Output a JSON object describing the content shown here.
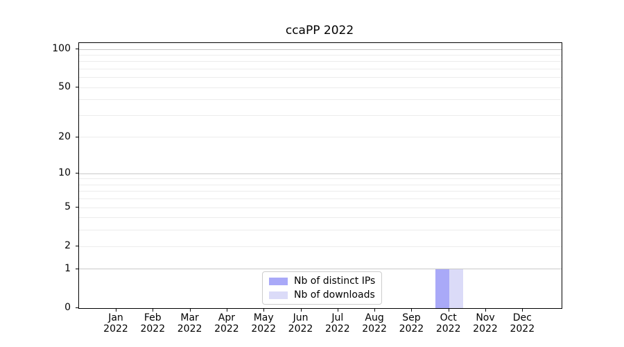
{
  "chart_data": {
    "type": "bar",
    "title": "ccaPP 2022",
    "categories": [
      "Jan",
      "Feb",
      "Mar",
      "Apr",
      "May",
      "Jun",
      "Jul",
      "Aug",
      "Sep",
      "Oct",
      "Nov",
      "Dec"
    ],
    "year": "2022",
    "series": [
      {
        "name": "Nb of distinct IPs",
        "color": "#a9a9f8",
        "values": [
          0,
          0,
          0,
          0,
          0,
          0,
          0,
          0,
          0,
          1,
          0,
          0
        ]
      },
      {
        "name": "Nb of downloads",
        "color": "#dbdbf8",
        "values": [
          0,
          0,
          0,
          0,
          0,
          0,
          0,
          0,
          0,
          1,
          0,
          0
        ]
      }
    ],
    "yscale": "log10(1+y)",
    "y_major_ticks": [
      0,
      1,
      2,
      5,
      10,
      20,
      50,
      100
    ],
    "y_minor_ticks": [
      3,
      4,
      6,
      7,
      8,
      9,
      30,
      40,
      60,
      70,
      80,
      90
    ],
    "ylim": [
      0,
      112
    ],
    "grid": "horizontal",
    "legend_position": "lower center"
  }
}
